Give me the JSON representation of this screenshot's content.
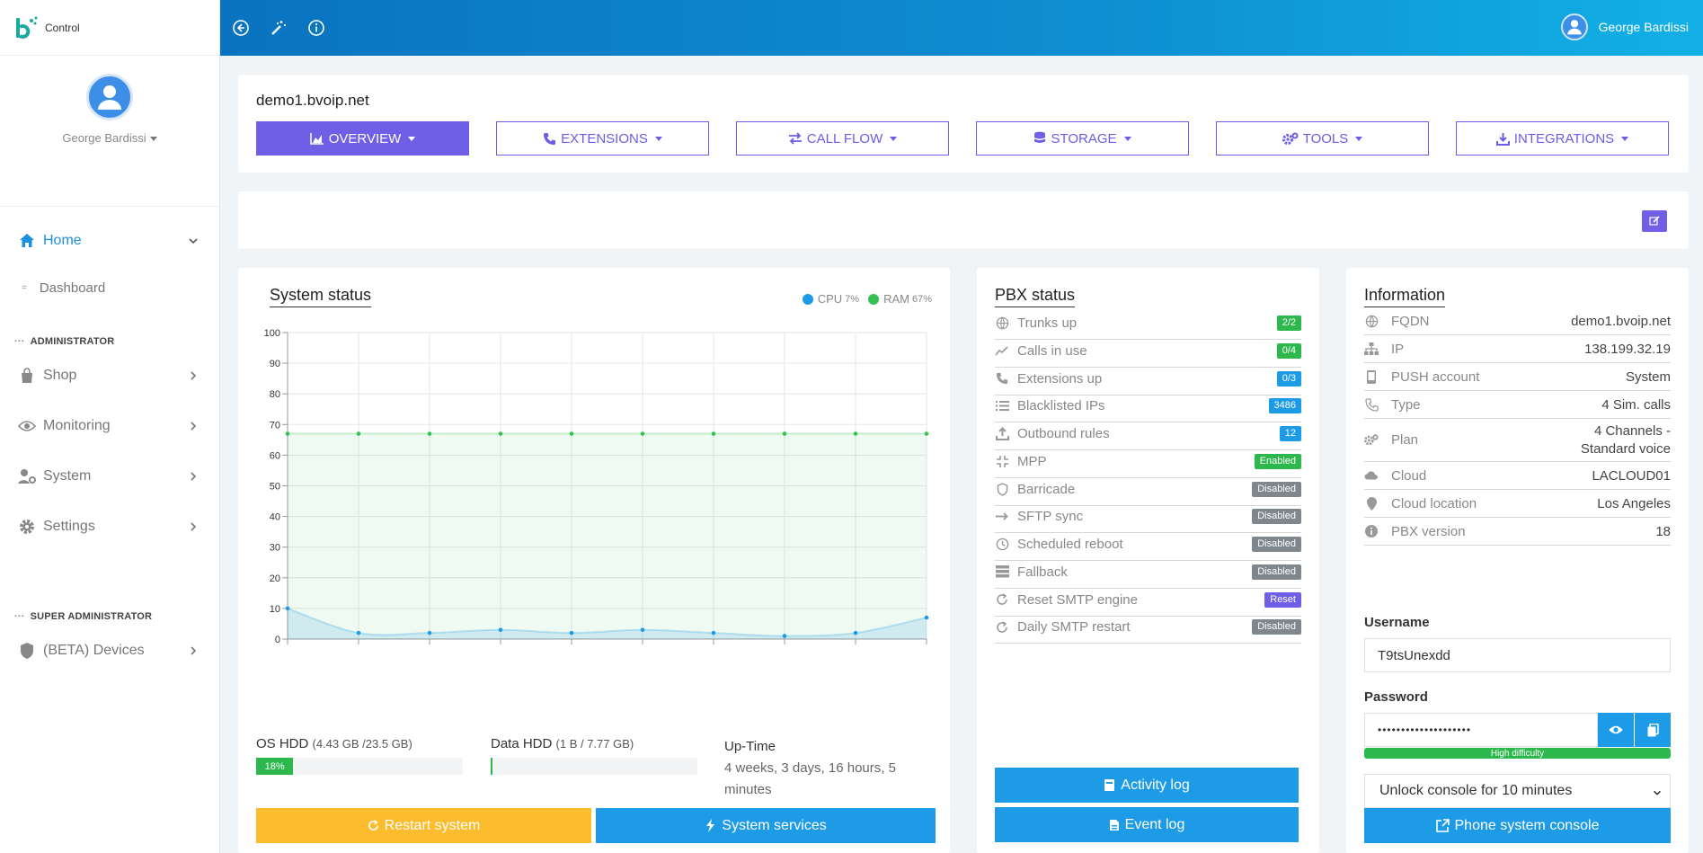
{
  "app": {
    "brand": "Control"
  },
  "sidebar": {
    "user_name": "George Bardissi",
    "home_label": "Home",
    "dashboard_label": "Dashboard",
    "admin_section": "ADMINISTRATOR",
    "admin_items": [
      {
        "label": "Shop",
        "icon": "shopping-bag-icon"
      },
      {
        "label": "Monitoring",
        "icon": "eye-icon"
      },
      {
        "label": "System",
        "icon": "user-cog-icon"
      },
      {
        "label": "Settings",
        "icon": "gear-icon"
      }
    ],
    "super_section": "SUPER ADMINISTRATOR",
    "super_items": [
      {
        "label": "(BETA) Devices",
        "icon": "shield-icon"
      }
    ]
  },
  "topbar": {
    "user_name": "George Bardissi",
    "icons": [
      "back-icon",
      "magic-wand-icon",
      "info-icon"
    ]
  },
  "host": {
    "name": "demo1.bvoip.net",
    "tabs": [
      {
        "label": "OVERVIEW",
        "icon": "chart-area-icon",
        "active": true
      },
      {
        "label": "EXTENSIONS",
        "icon": "phone-icon"
      },
      {
        "label": "CALL FLOW",
        "icon": "exchange-icon"
      },
      {
        "label": "STORAGE",
        "icon": "database-icon"
      },
      {
        "label": "TOOLS",
        "icon": "cogs-icon"
      },
      {
        "label": "INTEGRATIONS",
        "icon": "download-icon"
      }
    ]
  },
  "system_status": {
    "title": "System status",
    "legend": [
      {
        "label": "CPU",
        "value": "7%",
        "color": "#1e9be6"
      },
      {
        "label": "RAM",
        "value": "67%",
        "color": "#36c154"
      }
    ],
    "chart_data": {
      "type": "area",
      "ylim": [
        0,
        100
      ],
      "yticks": [
        0,
        10,
        20,
        30,
        40,
        50,
        60,
        70,
        80,
        90,
        100
      ],
      "series": [
        {
          "name": "RAM",
          "values": [
            67,
            67,
            67,
            67,
            67,
            67,
            67,
            67,
            67,
            67
          ],
          "color": "#36c154"
        },
        {
          "name": "CPU",
          "values": [
            10,
            2,
            2,
            3,
            2,
            3,
            2,
            1,
            2,
            7
          ],
          "color": "#1e9be6"
        }
      ]
    },
    "os_hdd": {
      "label": "OS HDD",
      "detail": "(4.43 GB /23.5 GB)",
      "percent_label": "18%",
      "percent": 18
    },
    "data_hdd": {
      "label": "Data HDD",
      "detail": "(1 B / 7.77 GB)",
      "percent": 0
    },
    "uptime_label": "Up-Time",
    "uptime_value": "4 weeks, 3 days, 16 hours, 5 minutes",
    "restart_button": "Restart system",
    "services_button": "System services"
  },
  "pbx_status": {
    "title": "PBX status",
    "rows": [
      {
        "label": "Trunks up",
        "badge": "2/2",
        "color": "#2db84d",
        "icon": "globe-icon"
      },
      {
        "label": "Calls in use",
        "badge": "0/4",
        "color": "#2db84d",
        "icon": "line-chart-icon"
      },
      {
        "label": "Extensions up",
        "badge": "0/3",
        "color": "#1e9be6",
        "icon": "phone-icon"
      },
      {
        "label": "Blacklisted IPs",
        "badge": "3486",
        "color": "#1e9be6",
        "icon": "list-icon"
      },
      {
        "label": "Outbound rules",
        "badge": "12",
        "color": "#1e9be6",
        "icon": "upload-icon"
      },
      {
        "label": "MPP",
        "badge": "Enabled",
        "color": "#2db84d",
        "icon": "compress-icon"
      },
      {
        "label": "Barricade",
        "badge": "Disabled",
        "color": "#7f868c",
        "icon": "shield-icon"
      },
      {
        "label": "SFTP sync",
        "badge": "Disabled",
        "color": "#7f868c",
        "icon": "sync-arrow-icon"
      },
      {
        "label": "Scheduled reboot",
        "badge": "Disabled",
        "color": "#7f868c",
        "icon": "clock-icon"
      },
      {
        "label": "Fallback",
        "badge": "Disabled",
        "color": "#7f868c",
        "icon": "server-icon"
      },
      {
        "label": "Reset SMTP engine",
        "badge": "Reset",
        "color": "#6f5ee6",
        "icon": "refresh-icon"
      },
      {
        "label": "Daily SMTP restart",
        "badge": "Disabled",
        "color": "#7f868c",
        "icon": "refresh-icon"
      }
    ],
    "activity_button": "Activity log",
    "event_button": "Event log"
  },
  "information": {
    "title": "Information",
    "rows": [
      {
        "label": "FQDN",
        "value": "demo1.bvoip.net",
        "icon": "globe-icon"
      },
      {
        "label": "IP",
        "value": "138.199.32.19",
        "icon": "sitemap-icon"
      },
      {
        "label": "PUSH account",
        "value": "System",
        "icon": "mobile-icon"
      },
      {
        "label": "Type",
        "value": "4 Sim. calls",
        "icon": "phone-volume-icon"
      },
      {
        "label": "Plan",
        "value": "4 Channels - Standard voice",
        "icon": "cogs-icon"
      },
      {
        "label": "Cloud",
        "value": "LACLOUD01",
        "icon": "cloud-icon"
      },
      {
        "label": "Cloud location",
        "value": "Los Angeles",
        "icon": "map-marker-icon"
      },
      {
        "label": "PBX version",
        "value": "18",
        "icon": "info-icon"
      }
    ],
    "username_label": "Username",
    "username_value": "T9tsUnexdd",
    "password_label": "Password",
    "password_value": "••••••••••••••••••••",
    "strength_label": "High difficulty",
    "unlock_select": "Unlock console for 10 minutes",
    "console_button": "Phone system console"
  },
  "colors": {
    "accent": "#6f5ee6",
    "blue": "#1e9be6",
    "green": "#2db84d",
    "yellow": "#fbbd2e"
  }
}
